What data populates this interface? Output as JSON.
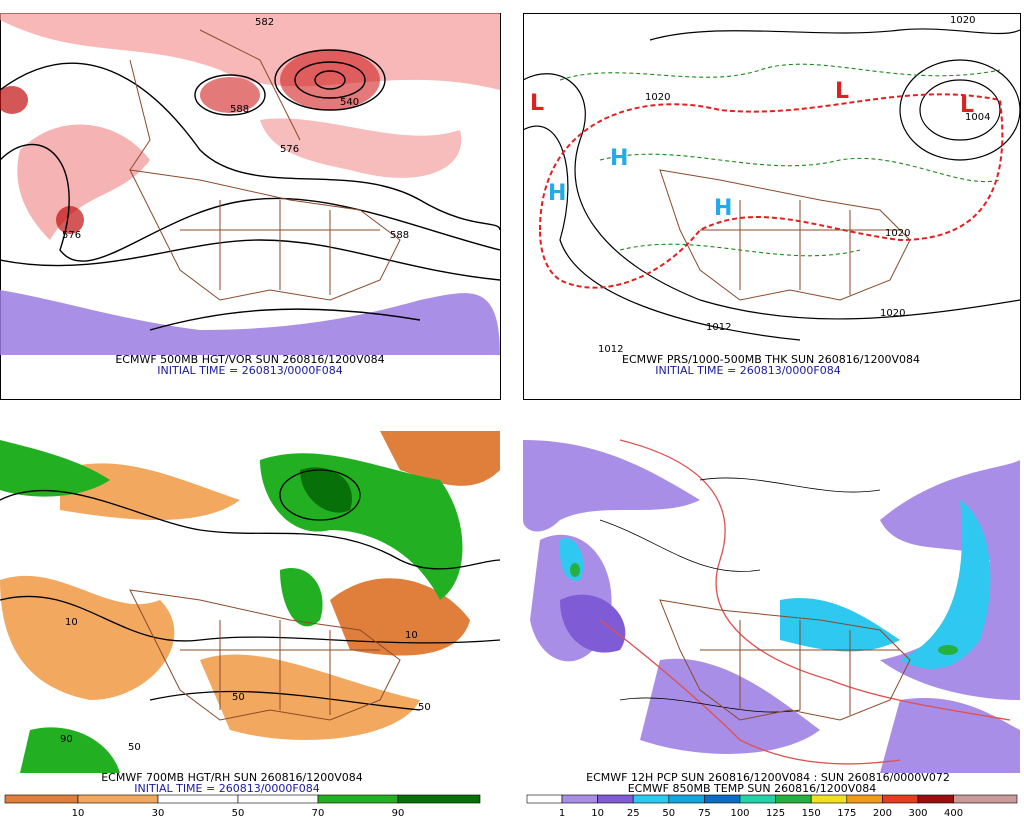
{
  "panels": [
    {
      "title": "ECMWF 500MB HGT/VOR SUN 260816/1200V084",
      "subtitle": "INITIAL TIME = 260813/0000F084",
      "contour_labels": [
        582,
        540,
        588,
        576,
        576,
        588
      ]
    },
    {
      "title": "ECMWF PRS/1000-500MB THK SUN 260816/1200V084",
      "subtitle": "INITIAL TIME = 260813/0000F084",
      "contour_labels": [
        1012,
        1020,
        1020,
        1020,
        1020,
        1012,
        1004
      ]
    },
    {
      "title": "ECMWF 700MB HGT/RH SUN 260816/1200V084",
      "subtitle": "INITIAL TIME = 260813/0000F084",
      "contour_labels": [
        50,
        50,
        10,
        90,
        10,
        50
      ],
      "colorbar": {
        "ticks": [
          10,
          30,
          50,
          70,
          90
        ],
        "colors": [
          "#e07f3c",
          "#f3a860",
          "#ffffff",
          "#ffffff",
          "#22b022",
          "#087008"
        ]
      }
    },
    {
      "title": "ECMWF 12H PCP SUN 260816/1200V084 : SUN 260816/0000V072",
      "subtitle": "ECMWF 850MB TEMP SUN 260816/1200V084",
      "contour_labels": [],
      "colorbar": {
        "ticks": [
          1,
          10,
          25,
          50,
          75,
          100,
          125,
          150,
          175,
          200,
          300,
          400
        ],
        "colors": [
          "#ffffff",
          "#a88ee6",
          "#7f5bd6",
          "#2ec8f0",
          "#18a2e0",
          "#0a6ec4",
          "#28d0a8",
          "#26b040",
          "#f0e020",
          "#f09a20",
          "#e04020",
          "#9a1010",
          "#c89a9a"
        ]
      }
    }
  ]
}
